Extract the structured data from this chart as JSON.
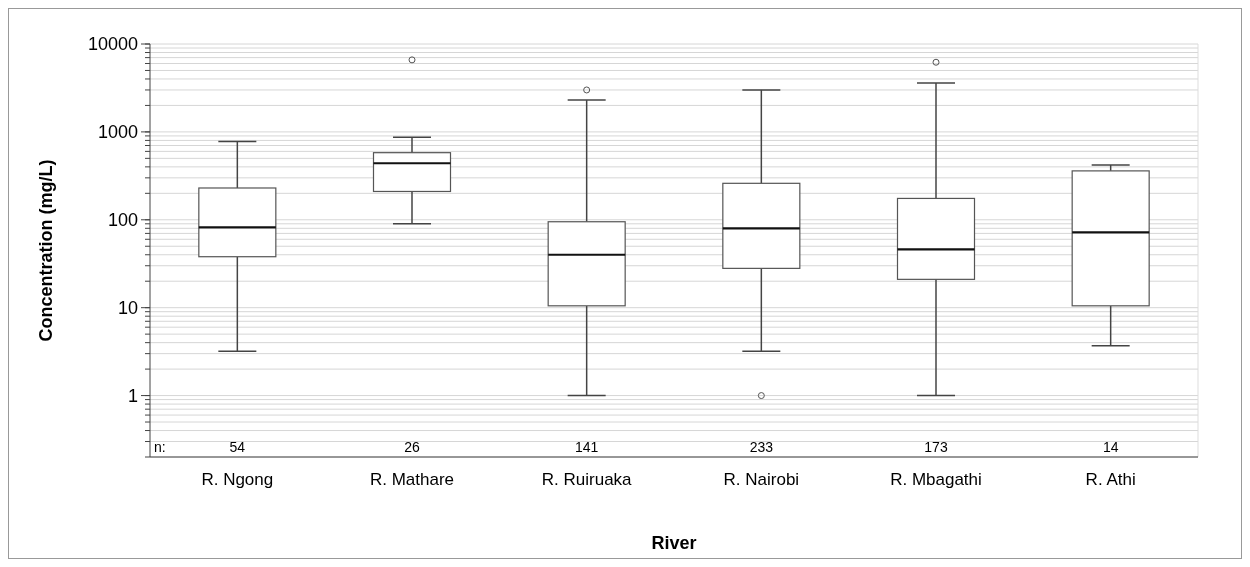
{
  "chart_data": {
    "type": "box",
    "xlabel": "River",
    "ylabel": "Concentration (mg/L)",
    "log": true,
    "grid": "y",
    "ylim": [
      0.2,
      10000
    ],
    "yticks": [
      1,
      10,
      100,
      1000,
      10000
    ],
    "categories": [
      "R. Ngong",
      "R. Mathare",
      "R. Ruiruaka",
      "R. Nairobi",
      "R. Mbagathi",
      "R. Athi"
    ],
    "boxes": [
      {
        "low": 3.2,
        "q1": 38,
        "median": 82,
        "q3": 230,
        "high": 780
      },
      {
        "low": 90,
        "q1": 210,
        "median": 440,
        "q3": 580,
        "high": 870,
        "outliers": [
          6600
        ]
      },
      {
        "low": 1,
        "q1": 10.5,
        "median": 40,
        "q3": 95,
        "high": 2300,
        "outliers": [
          3000
        ]
      },
      {
        "low": 3.2,
        "q1": 28,
        "median": 80,
        "q3": 260,
        "high": 3000,
        "outliers": [
          1
        ]
      },
      {
        "low": 1,
        "q1": 21,
        "median": 46,
        "q3": 175,
        "high": 3600,
        "outliers": [
          6200
        ]
      },
      {
        "low": 3.7,
        "q1": 10.5,
        "median": 72,
        "q3": 360,
        "high": 420
      }
    ],
    "annotations": [
      "n:",
      "54",
      "26",
      "141",
      "233",
      "173",
      "14"
    ]
  }
}
